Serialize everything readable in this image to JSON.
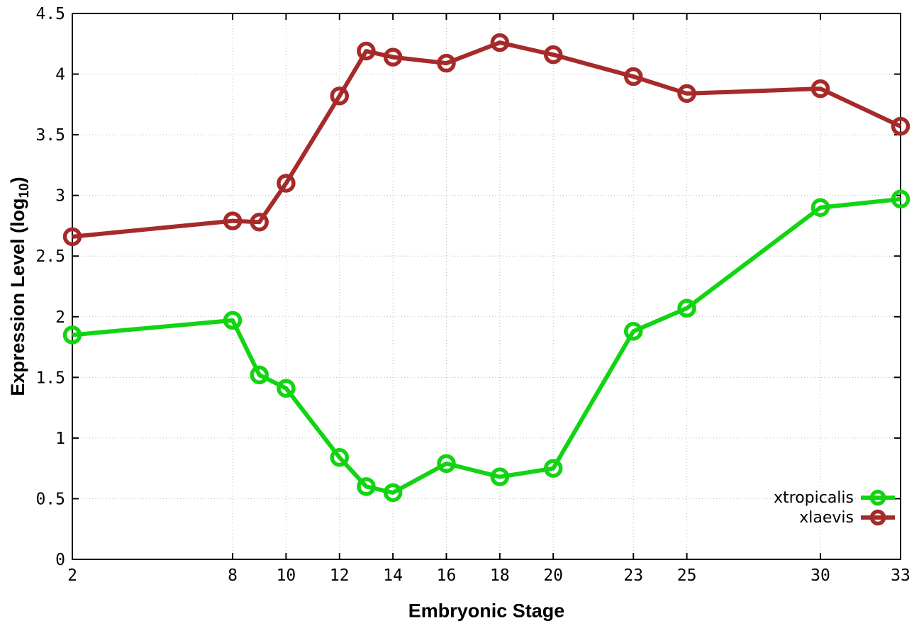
{
  "chart_data": {
    "type": "line",
    "title": "",
    "xlabel": "Embryonic Stage",
    "ylabel_base": "Expression Level (log",
    "ylabel_sub": "10",
    "ylabel_close": ")",
    "x": [
      2,
      8,
      9,
      10,
      12,
      13,
      14,
      16,
      18,
      20,
      23,
      25,
      30,
      33
    ],
    "xtick_values": [
      2,
      8,
      10,
      12,
      14,
      16,
      18,
      20,
      23,
      25,
      30,
      33
    ],
    "xtick_labels": [
      "2",
      "8",
      "10",
      "12",
      "14",
      "16",
      "18",
      "20",
      "23",
      "25",
      "30",
      "33"
    ],
    "ytick_values": [
      0,
      0.5,
      1,
      1.5,
      2,
      2.5,
      3,
      3.5,
      4,
      4.5
    ],
    "ytick_labels": [
      "0",
      "0.5",
      "1",
      "1.5",
      "2",
      "2.5",
      "3",
      "3.5",
      "4",
      "4.5"
    ],
    "xlim": [
      2,
      33
    ],
    "ylim": [
      0,
      4.5
    ],
    "grid": true,
    "legend_position": "bottom-right",
    "series": [
      {
        "name": "xtropicalis",
        "color": "#12d412",
        "values": [
          1.85,
          1.97,
          1.52,
          1.41,
          0.84,
          0.6,
          0.55,
          0.79,
          0.68,
          0.75,
          1.88,
          2.07,
          2.9,
          2.97
        ]
      },
      {
        "name": "xlaevis",
        "color": "#a62a2a",
        "values": [
          2.66,
          2.79,
          2.78,
          3.1,
          3.82,
          4.19,
          4.14,
          4.09,
          4.26,
          4.16,
          3.98,
          3.84,
          3.88,
          3.57
        ]
      }
    ],
    "style": {
      "grid_color": "#bbbbbb",
      "border_color": "#000000",
      "text_color": "#000000"
    }
  }
}
